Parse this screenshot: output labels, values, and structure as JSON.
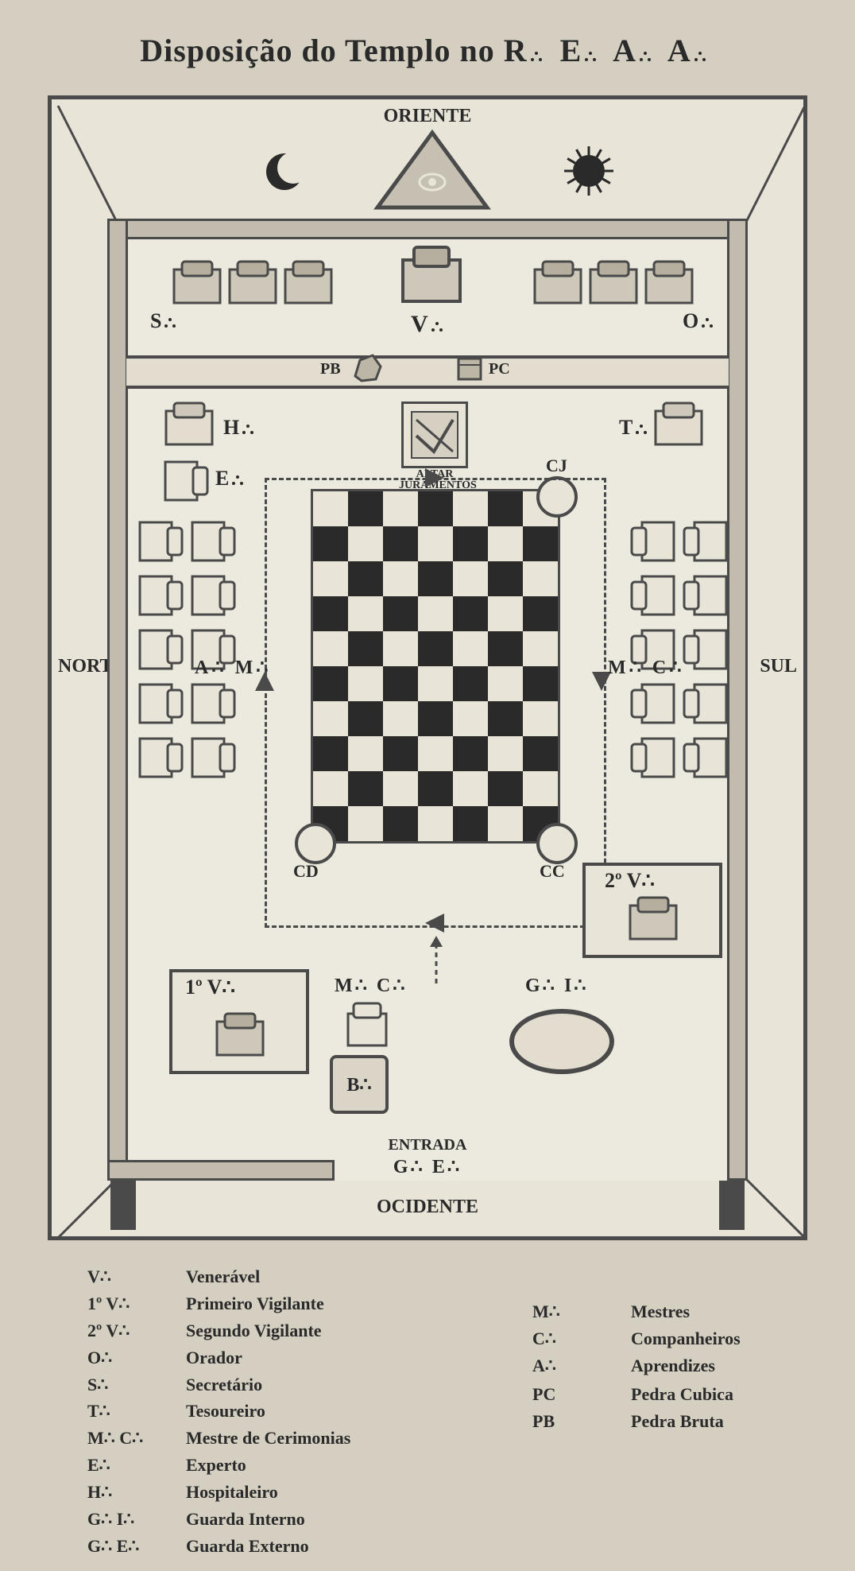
{
  "title_prefix": "Disposição do Templo no",
  "title_letters": [
    "R",
    "E",
    "A",
    "A"
  ],
  "compass": {
    "east": "ORIENTE",
    "west": "OCIDENTE",
    "north": "NORTE",
    "south": "SUL",
    "entrance": "ENTRADA"
  },
  "east_thrones": {
    "S": "S",
    "V": "V",
    "O": "O"
  },
  "balustrade": {
    "PB": "PB",
    "PC": "PC"
  },
  "officers": {
    "H": "H",
    "T": "T",
    "E": "E"
  },
  "altar": {
    "line1": "ALTAR",
    "line2": "JURAMENTOS"
  },
  "checker": {
    "cols": 7,
    "rows": 10,
    "corners": {
      "CJ": "CJ",
      "CD": "CD",
      "CC": "CC"
    }
  },
  "mid_labels": {
    "AM": "A∴ M∴",
    "MC": "M∴ C∴"
  },
  "south_podium": "2º V∴",
  "west_podium": "1º V∴",
  "west_officers": {
    "MC": "M∴ C∴",
    "GI": "G∴ I∴",
    "B": "B∴"
  },
  "ge": "G∴ E∴",
  "legend_left": [
    [
      "V∴",
      "Venerável"
    ],
    [
      "1º V∴",
      "Primeiro Vigilante"
    ],
    [
      "2º V∴",
      "Segundo Vigilante"
    ],
    [
      "O∴",
      "Orador"
    ],
    [
      "S∴",
      "Secretário"
    ],
    [
      "T∴",
      "Tesoureiro"
    ],
    [
      "M∴ C∴",
      "Mestre de Cerimonias"
    ],
    [
      "E∴",
      "Experto"
    ],
    [
      "H∴",
      "Hospitaleiro"
    ],
    [
      "G∴ I∴",
      "Guarda Interno"
    ],
    [
      "G∴ E∴",
      "Guarda Externo"
    ]
  ],
  "legend_right": [
    [
      "M∴",
      "Mestres"
    ],
    [
      "C∴",
      "Companheiros"
    ],
    [
      "A∴",
      "Aprendizes"
    ],
    [
      "",
      ""
    ],
    [
      "PC",
      "Pedra Cubica"
    ],
    [
      "PB",
      "Pedra Bruta"
    ]
  ],
  "colors": {
    "bg": "#d4cfc1",
    "ink": "#2a2a2a",
    "paper": "#e8e4d8",
    "wall": "#c2bcae"
  }
}
